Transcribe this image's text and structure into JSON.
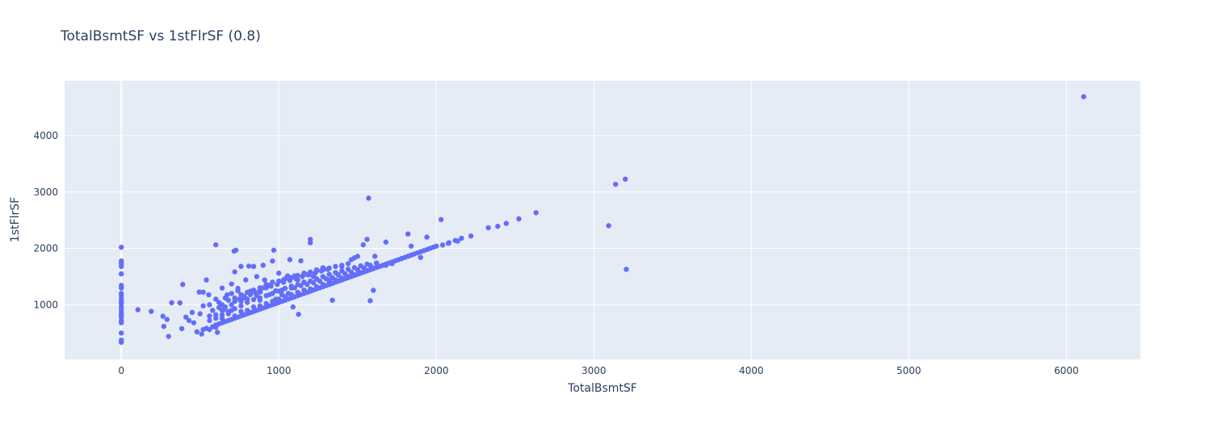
{
  "chart_data": {
    "type": "scatter",
    "title": "TotalBsmtSF vs 1stFlrSF (0.8)",
    "xlabel": "TotalBsmtSF",
    "ylabel": "1stFlrSF",
    "xlim": [
      -360,
      6470
    ],
    "ylim": [
      30,
      4975
    ],
    "xticks": [
      0,
      1000,
      2000,
      3000,
      4000,
      5000,
      6000
    ],
    "yticks": [
      1000,
      2000,
      3000,
      4000
    ],
    "grid": true,
    "colors": {
      "marker": "#636efa",
      "plot_bg": "#e5ecf6",
      "grid": "#ffffff",
      "text": "#2a3f5f"
    },
    "points": [
      [
        0,
        334
      ],
      [
        0,
        372
      ],
      [
        0,
        498
      ],
      [
        0,
        680
      ],
      [
        0,
        720
      ],
      [
        0,
        780
      ],
      [
        0,
        816
      ],
      [
        0,
        864
      ],
      [
        0,
        912
      ],
      [
        0,
        960
      ],
      [
        0,
        1020
      ],
      [
        0,
        1056
      ],
      [
        0,
        1092
      ],
      [
        0,
        1152
      ],
      [
        0,
        1200
      ],
      [
        0,
        1296
      ],
      [
        0,
        1344
      ],
      [
        0,
        1548
      ],
      [
        0,
        1680
      ],
      [
        0,
        1728
      ],
      [
        0,
        1776
      ],
      [
        0,
        2020
      ],
      [
        105,
        912
      ],
      [
        190,
        882
      ],
      [
        264,
        796
      ],
      [
        270,
        616
      ],
      [
        290,
        740
      ],
      [
        300,
        438
      ],
      [
        320,
        1036
      ],
      [
        372,
        1034
      ],
      [
        384,
        576
      ],
      [
        390,
        1360
      ],
      [
        410,
        780
      ],
      [
        430,
        720
      ],
      [
        450,
        864
      ],
      [
        460,
        680
      ],
      [
        480,
        520
      ],
      [
        495,
        1224
      ],
      [
        500,
        840
      ],
      [
        510,
        480
      ],
      [
        520,
        980
      ],
      [
        520,
        1224
      ],
      [
        540,
        1440
      ],
      [
        555,
        1176
      ],
      [
        560,
        800
      ],
      [
        600,
        600
      ],
      [
        600,
        2064
      ],
      [
        610,
        510
      ],
      [
        640,
        1296
      ],
      [
        650,
        910
      ],
      [
        672,
        1176
      ],
      [
        700,
        1368
      ],
      [
        716,
        1952
      ],
      [
        720,
        1584
      ],
      [
        728,
        1968
      ],
      [
        740,
        1248
      ],
      [
        760,
        1680
      ],
      [
        780,
        1120
      ],
      [
        790,
        1440
      ],
      [
        810,
        1685
      ],
      [
        840,
        1680
      ],
      [
        860,
        1500
      ],
      [
        882,
        1224
      ],
      [
        900,
        1700
      ],
      [
        910,
        1440
      ],
      [
        940,
        1344
      ],
      [
        960,
        1776
      ],
      [
        968,
        1968
      ],
      [
        980,
        1248
      ],
      [
        1000,
        1560
      ],
      [
        1020,
        1176
      ],
      [
        1030,
        1440
      ],
      [
        1056,
        1512
      ],
      [
        1070,
        1800
      ],
      [
        1080,
        1296
      ],
      [
        1090,
        960
      ],
      [
        1100,
        1512
      ],
      [
        1120,
        1440
      ],
      [
        1125,
        830
      ],
      [
        1140,
        1780
      ],
      [
        1160,
        1400
      ],
      [
        1180,
        1536
      ],
      [
        1200,
        2100
      ],
      [
        1200,
        2160
      ],
      [
        1220,
        1500
      ],
      [
        1240,
        1620
      ],
      [
        1280,
        1656
      ],
      [
        1320,
        1440
      ],
      [
        1340,
        1080
      ],
      [
        1376,
        1536
      ],
      [
        1400,
        1680
      ],
      [
        1440,
        1728
      ],
      [
        1460,
        1800
      ],
      [
        1480,
        1832
      ],
      [
        1500,
        1860
      ],
      [
        1536,
        2064
      ],
      [
        1560,
        2160
      ],
      [
        1570,
        2892
      ],
      [
        1580,
        1072
      ],
      [
        1600,
        1256
      ],
      [
        1610,
        1860
      ],
      [
        1680,
        2112
      ],
      [
        1820,
        2256
      ],
      [
        1840,
        2040
      ],
      [
        1900,
        1840
      ],
      [
        1940,
        2200
      ],
      [
        2030,
        2512
      ],
      [
        2076,
        2090
      ],
      [
        2136,
        2130
      ],
      [
        2220,
        2220
      ],
      [
        2330,
        2366
      ],
      [
        2390,
        2392
      ],
      [
        2444,
        2444
      ],
      [
        2524,
        2524
      ],
      [
        2633,
        2633
      ],
      [
        3094,
        2402
      ],
      [
        3138,
        3138
      ],
      [
        3200,
        3228
      ],
      [
        3206,
        1629
      ],
      [
        6110,
        4692
      ],
      [
        520,
        560
      ],
      [
        540,
        580
      ],
      [
        560,
        560
      ],
      [
        580,
        610
      ],
      [
        600,
        640
      ],
      [
        620,
        660
      ],
      [
        640,
        680
      ],
      [
        660,
        700
      ],
      [
        680,
        720
      ],
      [
        700,
        740
      ],
      [
        720,
        760
      ],
      [
        740,
        780
      ],
      [
        760,
        800
      ],
      [
        780,
        820
      ],
      [
        800,
        840
      ],
      [
        820,
        860
      ],
      [
        840,
        880
      ],
      [
        860,
        900
      ],
      [
        880,
        920
      ],
      [
        900,
        940
      ],
      [
        920,
        960
      ],
      [
        940,
        980
      ],
      [
        960,
        1000
      ],
      [
        980,
        1020
      ],
      [
        1000,
        1040
      ],
      [
        1020,
        1060
      ],
      [
        1040,
        1080
      ],
      [
        1060,
        1100
      ],
      [
        1080,
        1120
      ],
      [
        1100,
        1140
      ],
      [
        1120,
        1160
      ],
      [
        1140,
        1180
      ],
      [
        1160,
        1200
      ],
      [
        1180,
        1220
      ],
      [
        1200,
        1240
      ],
      [
        1220,
        1260
      ],
      [
        1240,
        1280
      ],
      [
        1260,
        1300
      ],
      [
        1280,
        1320
      ],
      [
        1300,
        1340
      ],
      [
        1320,
        1360
      ],
      [
        1340,
        1380
      ],
      [
        1360,
        1400
      ],
      [
        1380,
        1420
      ],
      [
        1400,
        1440
      ],
      [
        1420,
        1460
      ],
      [
        1440,
        1480
      ],
      [
        1460,
        1500
      ],
      [
        1480,
        1520
      ],
      [
        1500,
        1540
      ],
      [
        1520,
        1560
      ],
      [
        1540,
        1580
      ],
      [
        1560,
        1600
      ],
      [
        1580,
        1620
      ],
      [
        1600,
        1640
      ],
      [
        1620,
        1660
      ],
      [
        1640,
        1680
      ],
      [
        1660,
        1700
      ],
      [
        1680,
        1720
      ],
      [
        1700,
        1740
      ],
      [
        1720,
        1760
      ],
      [
        1740,
        1780
      ],
      [
        1760,
        1800
      ],
      [
        1780,
        1820
      ],
      [
        1800,
        1840
      ],
      [
        1820,
        1860
      ],
      [
        1840,
        1880
      ],
      [
        1860,
        1900
      ],
      [
        1880,
        1920
      ],
      [
        1900,
        1940
      ],
      [
        1920,
        1960
      ],
      [
        1940,
        1980
      ],
      [
        1960,
        2000
      ],
      [
        1980,
        2020
      ],
      [
        2000,
        2040
      ],
      [
        2040,
        2060
      ],
      [
        2080,
        2100
      ],
      [
        2120,
        2140
      ],
      [
        2160,
        2180
      ],
      [
        600,
        760
      ],
      [
        640,
        820
      ],
      [
        680,
        880
      ],
      [
        700,
        900
      ],
      [
        720,
        930
      ],
      [
        760,
        980
      ],
      [
        800,
        1040
      ],
      [
        840,
        1090
      ],
      [
        880,
        1120
      ],
      [
        920,
        1160
      ],
      [
        960,
        1200
      ],
      [
        1000,
        1240
      ],
      [
        1040,
        1290
      ],
      [
        1080,
        1330
      ],
      [
        1120,
        1360
      ],
      [
        1160,
        1400
      ],
      [
        1200,
        1420
      ],
      [
        1240,
        1460
      ],
      [
        1280,
        1500
      ],
      [
        1320,
        1540
      ],
      [
        1360,
        1570
      ],
      [
        1400,
        1600
      ],
      [
        1440,
        1630
      ],
      [
        1480,
        1660
      ],
      [
        1520,
        1690
      ],
      [
        1560,
        1720
      ],
      [
        640,
        900
      ],
      [
        660,
        960
      ],
      [
        700,
        1000
      ],
      [
        720,
        1060
      ],
      [
        750,
        1100
      ],
      [
        780,
        1150
      ],
      [
        820,
        1180
      ],
      [
        850,
        1220
      ],
      [
        880,
        1260
      ],
      [
        920,
        1300
      ],
      [
        950,
        1330
      ],
      [
        990,
        1360
      ],
      [
        1030,
        1400
      ],
      [
        1070,
        1430
      ],
      [
        1110,
        1460
      ],
      [
        1150,
        1500
      ],
      [
        1190,
        1530
      ],
      [
        1230,
        1560
      ],
      [
        1270,
        1600
      ],
      [
        1310,
        1630
      ],
      [
        560,
        1000
      ],
      [
        600,
        1100
      ],
      [
        620,
        1040
      ],
      [
        660,
        1120
      ],
      [
        700,
        1200
      ],
      [
        740,
        1290
      ],
      [
        760,
        1060
      ],
      [
        800,
        1100
      ],
      [
        820,
        1240
      ],
      [
        860,
        1160
      ],
      [
        880,
        1080
      ],
      [
        900,
        1300
      ],
      [
        940,
        1180
      ],
      [
        980,
        1100
      ],
      [
        1020,
        1260
      ],
      [
        1060,
        1200
      ],
      [
        1100,
        1300
      ],
      [
        1140,
        1340
      ],
      [
        1180,
        1360
      ],
      [
        1220,
        1390
      ],
      [
        1260,
        1420
      ],
      [
        1300,
        1460
      ],
      [
        1340,
        1480
      ],
      [
        1380,
        1520
      ],
      [
        1420,
        1550
      ],
      [
        1460,
        1580
      ],
      [
        1500,
        1620
      ],
      [
        1540,
        1650
      ],
      [
        1580,
        1700
      ],
      [
        1620,
        1740
      ],
      [
        580,
        900
      ],
      [
        620,
        950
      ],
      [
        640,
        1000
      ],
      [
        680,
        1080
      ],
      [
        720,
        1120
      ],
      [
        760,
        1180
      ],
      [
        800,
        1220
      ],
      [
        840,
        1260
      ],
      [
        880,
        1300
      ],
      [
        920,
        1360
      ],
      [
        960,
        1400
      ],
      [
        1000,
        1420
      ],
      [
        1040,
        1460
      ],
      [
        1080,
        1480
      ],
      [
        1120,
        1520
      ],
      [
        1160,
        1560
      ],
      [
        1200,
        1580
      ],
      [
        1240,
        1600
      ],
      [
        1280,
        1620
      ],
      [
        1320,
        1650
      ],
      [
        1360,
        1680
      ],
      [
        1400,
        1700
      ],
      [
        560,
        720
      ],
      [
        600,
        820
      ],
      [
        640,
        760
      ],
      [
        680,
        840
      ],
      [
        720,
        800
      ],
      [
        760,
        880
      ],
      [
        800,
        900
      ],
      [
        840,
        960
      ],
      [
        880,
        980
      ],
      [
        920,
        1020
      ],
      [
        960,
        1060
      ],
      [
        1000,
        1100
      ],
      [
        1040,
        1140
      ],
      [
        1080,
        1180
      ],
      [
        1120,
        1220
      ],
      [
        1160,
        1260
      ],
      [
        1200,
        1280
      ],
      [
        1240,
        1320
      ],
      [
        1280,
        1360
      ],
      [
        1320,
        1400
      ],
      [
        1360,
        1440
      ],
      [
        1400,
        1470
      ],
      [
        1440,
        1500
      ],
      [
        1480,
        1530
      ],
      [
        1520,
        1570
      ],
      [
        1560,
        1610
      ],
      [
        1600,
        1650
      ],
      [
        1640,
        1680
      ],
      [
        1680,
        1700
      ],
      [
        1720,
        1730
      ]
    ]
  }
}
